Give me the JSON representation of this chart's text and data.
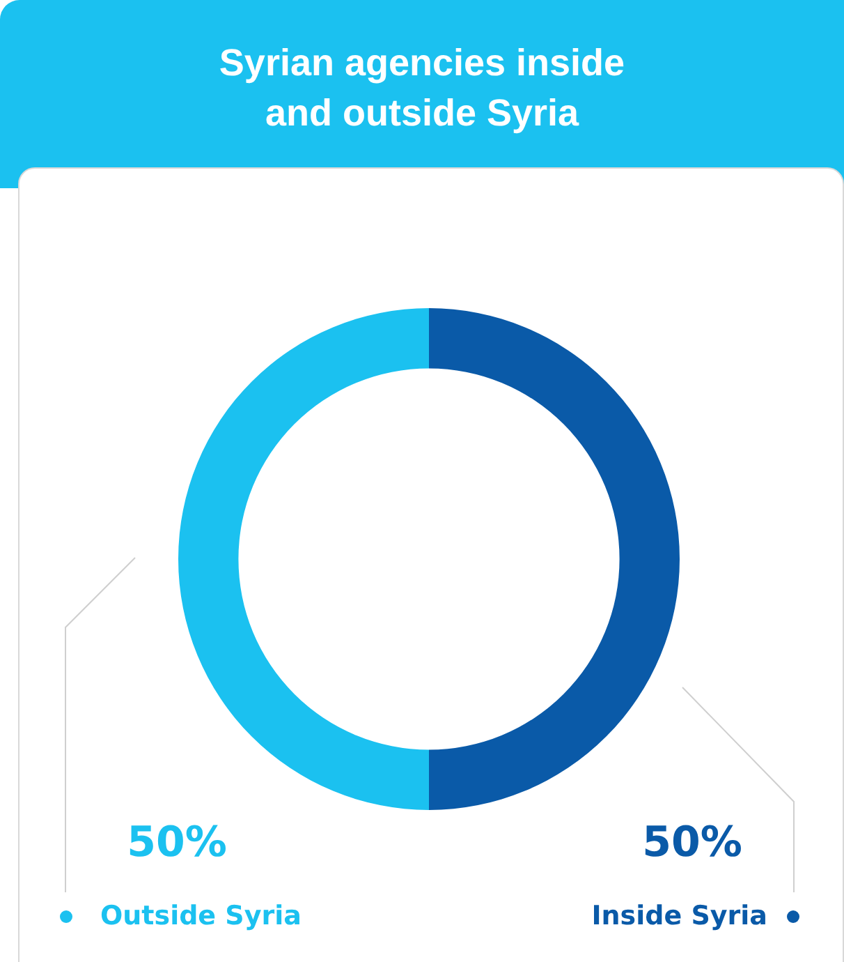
{
  "chart_data": {
    "type": "donut",
    "title": "Syrian agencies inside and outside Syria",
    "categories": [
      "Inside Syria",
      "Outside Syria"
    ],
    "values": [
      50,
      50
    ],
    "colors": [
      "#0a5aa8",
      "#1bc1f0"
    ],
    "value_labels": [
      "50%",
      "50%"
    ],
    "legend": "bottom"
  }
}
